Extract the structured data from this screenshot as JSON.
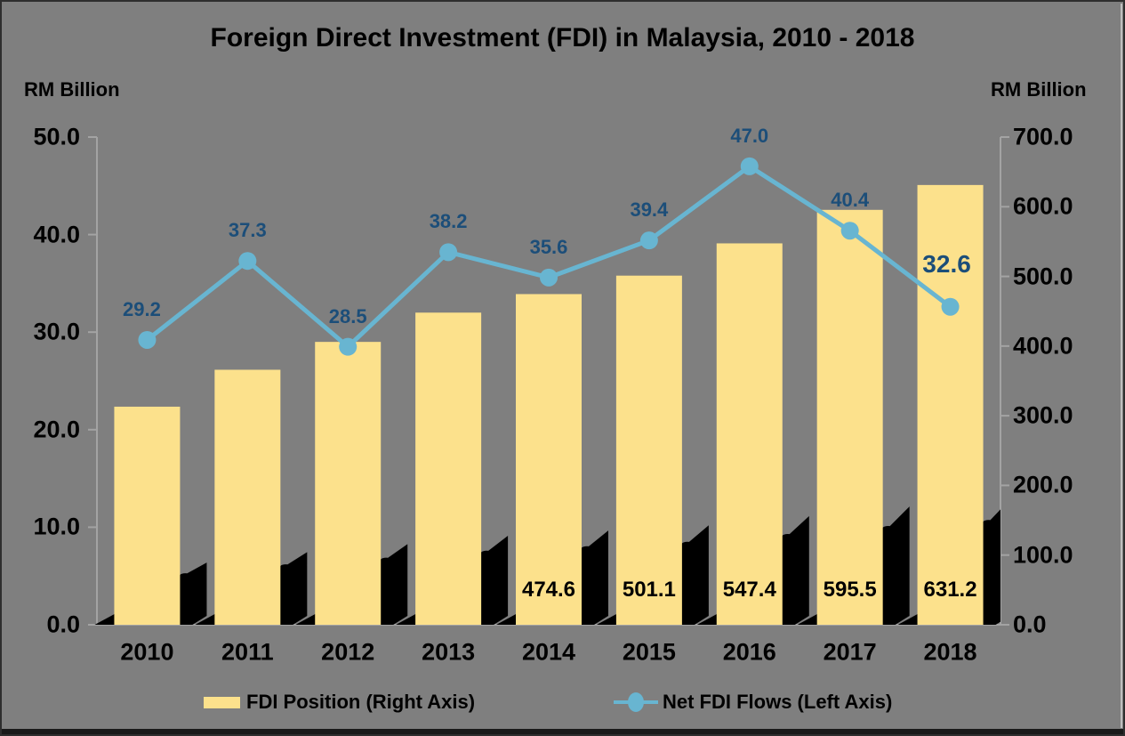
{
  "title": "Foreign Direct Investment (FDI) in Malaysia, 2010 - 2018",
  "axes": {
    "left": {
      "unit": "RM Billion",
      "ticks": [
        "50.0",
        "40.0",
        "30.0",
        "20.0",
        "10.0",
        "0.0"
      ],
      "range": [
        0,
        50
      ]
    },
    "right": {
      "unit": "RM Billion",
      "ticks": [
        "700.0",
        "600.0",
        "500.0",
        "400.0",
        "300.0",
        "200.0",
        "100.0",
        "0.0"
      ],
      "range": [
        0,
        700
      ]
    }
  },
  "legend": [
    {
      "label": "FDI Position (Right Axis)",
      "swatch": "bar"
    },
    {
      "label": "Net FDI Flows (Left Axis)",
      "swatch": "line-marker"
    }
  ],
  "colors": {
    "background": "#7F7F7F",
    "bar": "#FCE18C",
    "bar_shadow": "#000000",
    "line": "#68B5D1",
    "line_label": "#1C4E79",
    "text": "#000000",
    "axis_line": "#A3A3A3"
  },
  "chart_data": {
    "type": "combo",
    "categories": [
      "2010",
      "2011",
      "2012",
      "2013",
      "2014",
      "2015",
      "2016",
      "2017",
      "2018"
    ],
    "series": [
      {
        "name": "FDI Position (Right Axis)",
        "type": "bar",
        "axis": "right",
        "values": [
          313,
          366,
          406,
          448,
          474.6,
          501.1,
          547.4,
          595.5,
          631.2
        ],
        "data_labels": [
          null,
          null,
          null,
          null,
          "474.6",
          "501.1",
          "547.4",
          "595.5",
          "631.2"
        ],
        "note": "2010-2013 bars carry no data labels in the chart; those values are estimated from the right axis"
      },
      {
        "name": "Net FDI Flows (Left Axis)",
        "type": "line",
        "axis": "left",
        "values": [
          29.2,
          37.3,
          28.5,
          38.2,
          35.6,
          39.4,
          47.0,
          40.4,
          32.6
        ]
      }
    ],
    "left_ylim": [
      0,
      50
    ],
    "right_ylim": [
      0,
      700
    ],
    "grid": false,
    "legend_position": "bottom"
  }
}
